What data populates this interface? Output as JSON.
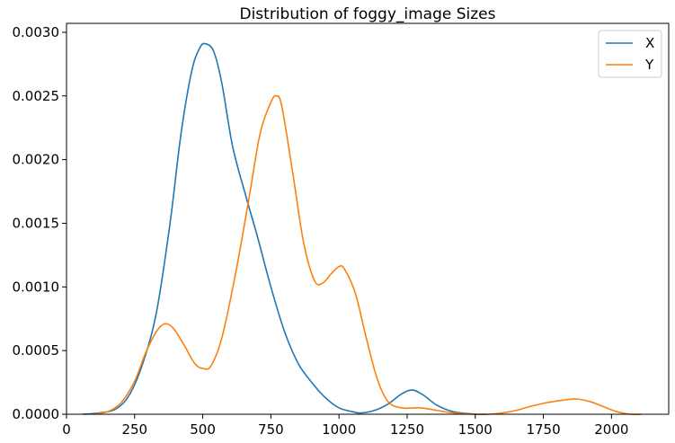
{
  "chart_data": {
    "type": "line",
    "title": "Distribution of foggy_image Sizes",
    "xlabel": "",
    "ylabel": "",
    "xlim": [
      0,
      2210
    ],
    "ylim": [
      0,
      0.00307
    ],
    "x_ticks": [
      "0",
      "250",
      "500",
      "750",
      "1000",
      "1250",
      "1500",
      "1750",
      "2000"
    ],
    "y_ticks": [
      "0.0000",
      "0.0005",
      "0.0010",
      "0.0015",
      "0.0020",
      "0.0025",
      "0.0030"
    ],
    "grid": false,
    "legend_position": "top-right",
    "series": [
      {
        "name": "X",
        "color": "#1f77b4",
        "points": [
          [
            60,
            0.0
          ],
          [
            120,
            1e-05
          ],
          [
            180,
            4e-05
          ],
          [
            230,
            0.00015
          ],
          [
            280,
            0.0004
          ],
          [
            330,
            0.0008
          ],
          [
            380,
            0.0015
          ],
          [
            420,
            0.0022
          ],
          [
            460,
            0.0027
          ],
          [
            490,
            0.00288
          ],
          [
            510,
            0.00291
          ],
          [
            540,
            0.00285
          ],
          [
            570,
            0.0026
          ],
          [
            610,
            0.0021
          ],
          [
            660,
            0.0017
          ],
          [
            700,
            0.0014
          ],
          [
            750,
            0.001
          ],
          [
            800,
            0.00065
          ],
          [
            850,
            0.0004
          ],
          [
            900,
            0.00025
          ],
          [
            950,
            0.00013
          ],
          [
            1000,
            5e-05
          ],
          [
            1050,
            2e-05
          ],
          [
            1080,
            1e-05
          ],
          [
            1130,
            3e-05
          ],
          [
            1180,
            8e-05
          ],
          [
            1230,
            0.00016
          ],
          [
            1270,
            0.00019
          ],
          [
            1310,
            0.00015
          ],
          [
            1360,
            7e-05
          ],
          [
            1420,
            2e-05
          ],
          [
            1500,
            0.0
          ],
          [
            1540,
            0.0
          ]
        ]
      },
      {
        "name": "Y",
        "color": "#ff7f0e",
        "points": [
          [
            100,
            0.0
          ],
          [
            150,
            2e-05
          ],
          [
            200,
            9e-05
          ],
          [
            250,
            0.00026
          ],
          [
            290,
            0.00048
          ],
          [
            330,
            0.00065
          ],
          [
            360,
            0.00071
          ],
          [
            390,
            0.00068
          ],
          [
            430,
            0.00055
          ],
          [
            470,
            0.0004
          ],
          [
            500,
            0.00036
          ],
          [
            530,
            0.00038
          ],
          [
            570,
            0.0006
          ],
          [
            620,
            0.0011
          ],
          [
            670,
            0.0017
          ],
          [
            710,
            0.0022
          ],
          [
            750,
            0.00245
          ],
          [
            770,
            0.0025
          ],
          [
            790,
            0.00242
          ],
          [
            830,
            0.0019
          ],
          [
            870,
            0.00135
          ],
          [
            910,
            0.00105
          ],
          [
            940,
            0.00103
          ],
          [
            970,
            0.0011
          ],
          [
            1000,
            0.00116
          ],
          [
            1020,
            0.00114
          ],
          [
            1060,
            0.00095
          ],
          [
            1100,
            0.0006
          ],
          [
            1140,
            0.00028
          ],
          [
            1180,
            0.0001
          ],
          [
            1230,
            5e-05
          ],
          [
            1300,
            5e-05
          ],
          [
            1360,
            3e-05
          ],
          [
            1420,
            1e-05
          ],
          [
            1500,
            0.0
          ],
          [
            1550,
            0.0
          ],
          [
            1600,
            1e-05
          ],
          [
            1650,
            3e-05
          ],
          [
            1700,
            6e-05
          ],
          [
            1760,
            9e-05
          ],
          [
            1820,
            0.00011
          ],
          [
            1870,
            0.00012
          ],
          [
            1920,
            0.0001
          ],
          [
            1970,
            6e-05
          ],
          [
            2020,
            2e-05
          ],
          [
            2070,
            0.0
          ],
          [
            2110,
            0.0
          ]
        ]
      }
    ]
  }
}
